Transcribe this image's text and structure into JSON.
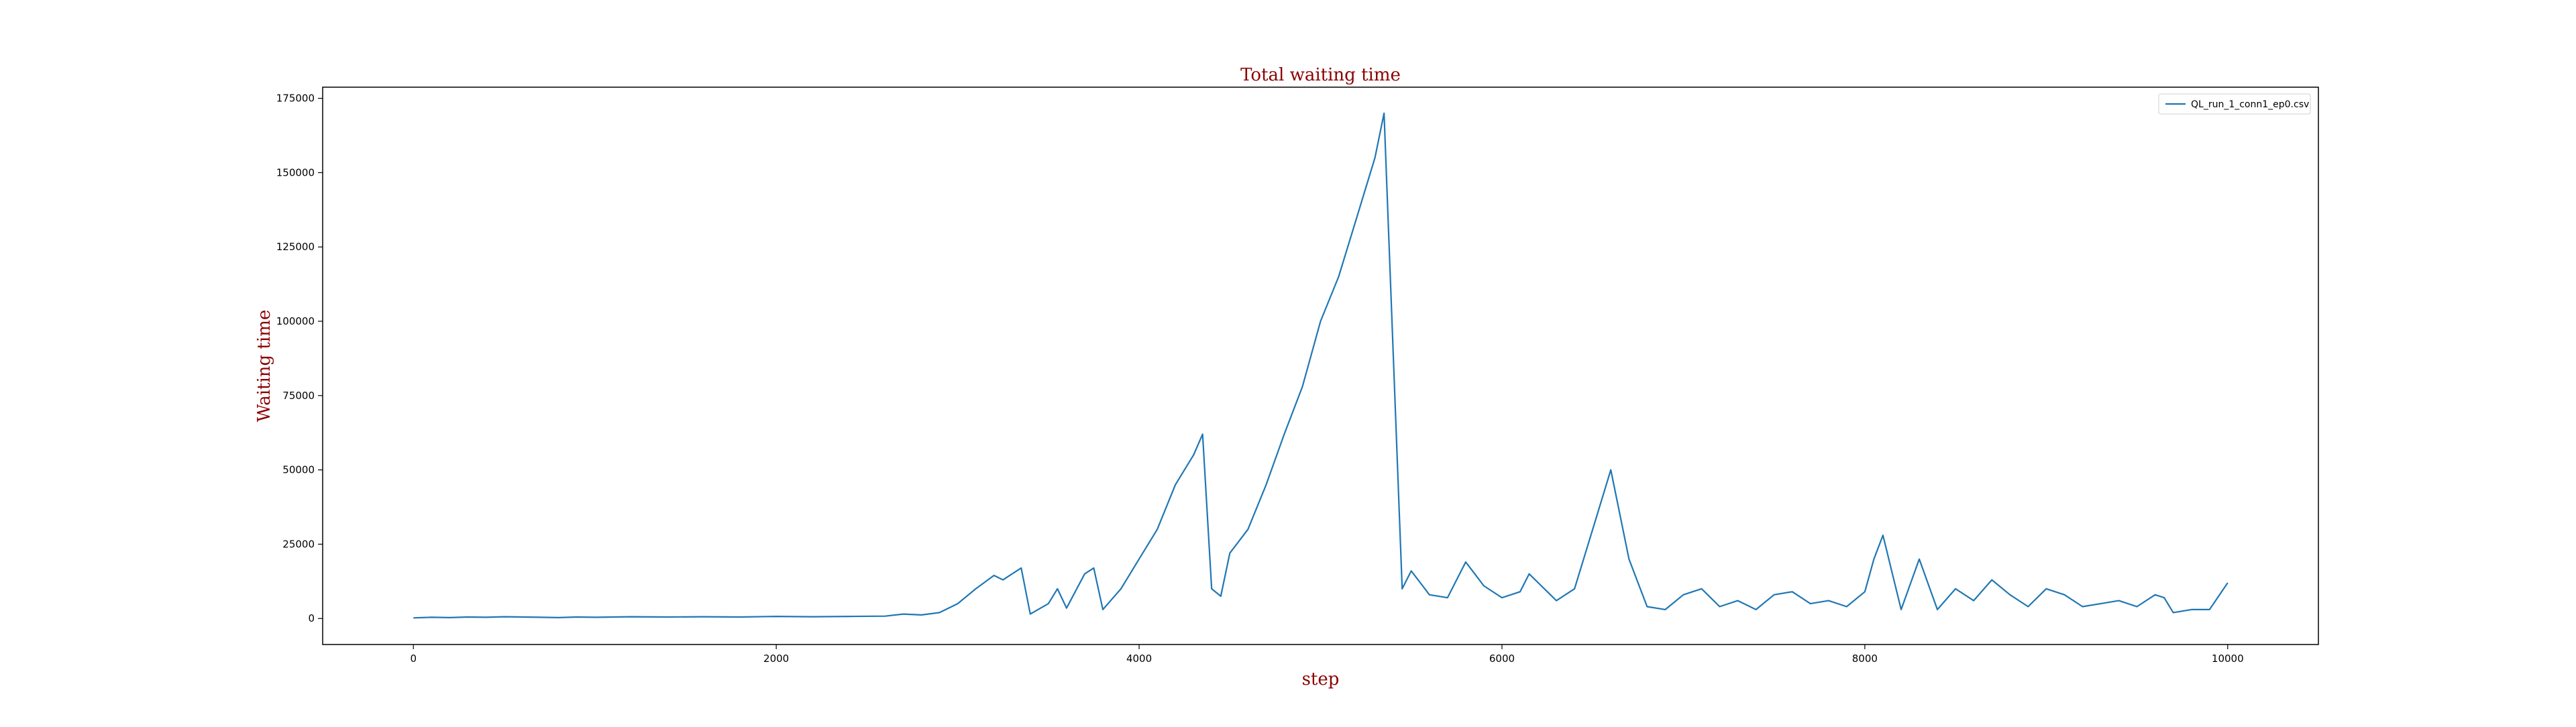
{
  "chart_data": {
    "type": "line",
    "title": "Total waiting time",
    "xlabel": "step",
    "ylabel": "Waiting time",
    "xlim": [
      -500,
      10500
    ],
    "ylim": [
      -8750,
      178750
    ],
    "xticks": [
      0,
      2000,
      4000,
      6000,
      8000,
      10000
    ],
    "yticks": [
      0,
      25000,
      50000,
      75000,
      100000,
      125000,
      150000,
      175000
    ],
    "grid": false,
    "legend_position": "upper right",
    "series": [
      {
        "name": "QL_run_1_conn1_ep0.csv",
        "color": "#1f77b4",
        "x": [
          0,
          100,
          200,
          300,
          400,
          500,
          600,
          700,
          800,
          900,
          1000,
          1200,
          1400,
          1600,
          1800,
          2000,
          2200,
          2400,
          2600,
          2700,
          2800,
          2900,
          3000,
          3100,
          3200,
          3250,
          3300,
          3350,
          3400,
          3500,
          3550,
          3600,
          3700,
          3750,
          3800,
          3900,
          4000,
          4100,
          4200,
          4300,
          4350,
          4400,
          4450,
          4500,
          4600,
          4700,
          4800,
          4900,
          5000,
          5100,
          5200,
          5300,
          5350,
          5400,
          5450,
          5500,
          5550,
          5600,
          5700,
          5800,
          5850,
          5900,
          6000,
          6100,
          6150,
          6200,
          6250,
          6300,
          6400,
          6500,
          6600,
          6700,
          6800,
          6900,
          7000,
          7100,
          7200,
          7300,
          7400,
          7500,
          7600,
          7700,
          7800,
          7900,
          8000,
          8050,
          8100,
          8200,
          8300,
          8400,
          8500,
          8600,
          8700,
          8800,
          8900,
          9000,
          9100,
          9200,
          9300,
          9400,
          9500,
          9600,
          9650,
          9700,
          9800,
          9900,
          10000
        ],
        "y": [
          200,
          400,
          300,
          500,
          400,
          600,
          500,
          400,
          300,
          500,
          400,
          600,
          500,
          600,
          500,
          700,
          600,
          700,
          800,
          1500,
          1200,
          2000,
          5000,
          10000,
          14500,
          13000,
          15000,
          17000,
          1500,
          5000,
          10000,
          3500,
          15000,
          17000,
          3000,
          10000,
          20000,
          30000,
          45000,
          55000,
          62000,
          10000,
          7500,
          22000,
          30000,
          45000,
          62000,
          78000,
          100000,
          115000,
          135000,
          155000,
          170000,
          90000,
          10000,
          16000,
          12000,
          8000,
          7000,
          19000,
          15000,
          11000,
          7000,
          9000,
          15000,
          12000,
          9000,
          6000,
          10000,
          30000,
          50000,
          20000,
          4000,
          3000,
          8000,
          10000,
          4000,
          6000,
          3000,
          8000,
          9000,
          5000,
          6000,
          4000,
          9000,
          20000,
          28000,
          3000,
          20000,
          3000,
          10000,
          6000,
          13000,
          8000,
          4000,
          10000,
          8000,
          4000,
          5000,
          6000,
          4000,
          8000,
          7000,
          2000,
          3000,
          3000,
          12000
        ]
      }
    ]
  }
}
